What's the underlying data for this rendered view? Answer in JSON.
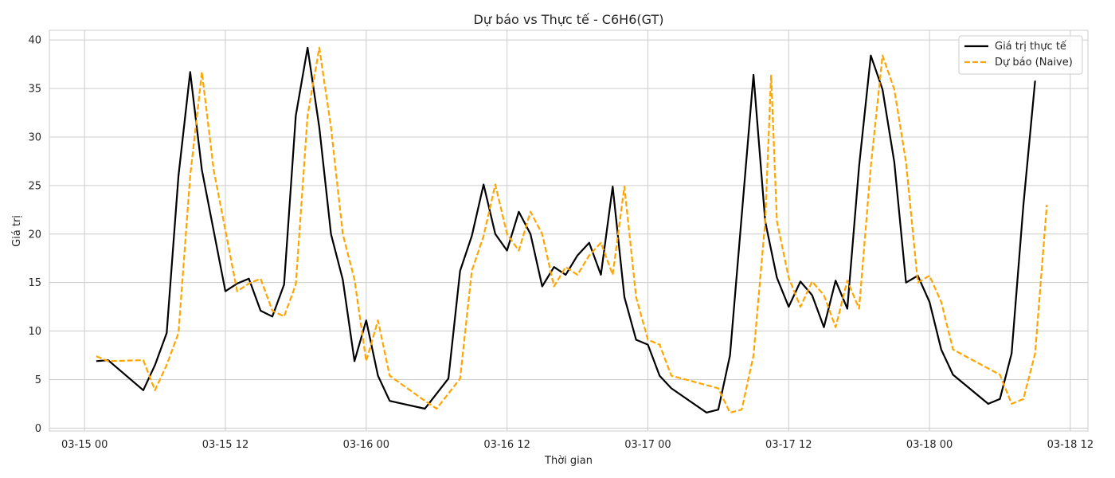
{
  "chart_data": {
    "type": "line",
    "title": "Dự báo vs Thực tế - C6H6(GT)",
    "xlabel": "Thời gian",
    "ylabel": "Giá trị",
    "x_ticks": [
      "03-15 00",
      "03-15 12",
      "03-16 00",
      "03-16 12",
      "03-17 00",
      "03-17 12",
      "03-18 00",
      "03-18 12"
    ],
    "x_tick_hours": [
      0,
      12,
      24,
      36,
      48,
      60,
      72,
      84
    ],
    "xlim_hours": [
      -3,
      85.5
    ],
    "y_ticks": [
      0,
      5,
      10,
      15,
      20,
      25,
      30,
      35,
      40
    ],
    "ylim": [
      -0.3,
      41
    ],
    "grid": true,
    "legend_position": "top-right",
    "series": [
      {
        "name": "Giá trị thực tế",
        "color": "#000000",
        "style": "solid",
        "points": [
          [
            1,
            6.9
          ],
          [
            2,
            7.0
          ],
          [
            5,
            3.9
          ],
          [
            6,
            6.5
          ],
          [
            7,
            9.8
          ],
          [
            8,
            26.0
          ],
          [
            9,
            36.7
          ],
          [
            10,
            26.6
          ],
          [
            12,
            14.1
          ],
          [
            13,
            14.9
          ],
          [
            14,
            15.4
          ],
          [
            15,
            12.1
          ],
          [
            16,
            11.5
          ],
          [
            17,
            14.8
          ],
          [
            18,
            32.2
          ],
          [
            19,
            39.2
          ],
          [
            20,
            31.0
          ],
          [
            21,
            20.0
          ],
          [
            22,
            15.3
          ],
          [
            23,
            6.9
          ],
          [
            24,
            11.1
          ],
          [
            25,
            5.4
          ],
          [
            26,
            2.8
          ],
          [
            29,
            2.0
          ],
          [
            31,
            5.1
          ],
          [
            32,
            16.2
          ],
          [
            33,
            19.8
          ],
          [
            34,
            25.1
          ],
          [
            35,
            20.0
          ],
          [
            36,
            18.3
          ],
          [
            37,
            22.3
          ],
          [
            38,
            20.0
          ],
          [
            39,
            14.6
          ],
          [
            40,
            16.6
          ],
          [
            41,
            15.8
          ],
          [
            42,
            17.8
          ],
          [
            43,
            19.1
          ],
          [
            44,
            15.8
          ],
          [
            45,
            24.9
          ],
          [
            46,
            13.5
          ],
          [
            47,
            9.1
          ],
          [
            48,
            8.6
          ],
          [
            49,
            5.4
          ],
          [
            50,
            4.1
          ],
          [
            53,
            1.6
          ],
          [
            54,
            1.9
          ],
          [
            55,
            7.5
          ],
          [
            57,
            36.4
          ],
          [
            58,
            21.3
          ],
          [
            59,
            15.5
          ],
          [
            60,
            12.5
          ],
          [
            61,
            15.1
          ],
          [
            62,
            13.7
          ],
          [
            63,
            10.4
          ],
          [
            64,
            15.2
          ],
          [
            65,
            12.3
          ],
          [
            66,
            27.0
          ],
          [
            67,
            38.4
          ],
          [
            68,
            34.9
          ],
          [
            69,
            27.4
          ],
          [
            70,
            15.0
          ],
          [
            71,
            15.7
          ],
          [
            72,
            13.0
          ],
          [
            73,
            8.1
          ],
          [
            74,
            5.5
          ],
          [
            77,
            2.5
          ],
          [
            78,
            3.0
          ],
          [
            79,
            7.7
          ],
          [
            80,
            23.0
          ],
          [
            81,
            35.8
          ]
        ]
      },
      {
        "name": "Dự báo (Naive)",
        "color": "#FFA500",
        "style": "dashed",
        "points": [
          [
            1,
            7.4
          ],
          [
            2,
            6.9
          ],
          [
            5,
            7.0
          ],
          [
            6,
            3.9
          ],
          [
            7,
            6.5
          ],
          [
            8,
            9.8
          ],
          [
            9,
            26.0
          ],
          [
            10,
            36.7
          ],
          [
            11,
            26.6
          ],
          [
            13,
            14.1
          ],
          [
            14,
            14.9
          ],
          [
            15,
            15.4
          ],
          [
            16,
            12.1
          ],
          [
            17,
            11.5
          ],
          [
            18,
            14.8
          ],
          [
            19,
            32.2
          ],
          [
            20,
            39.2
          ],
          [
            21,
            31.0
          ],
          [
            22,
            20.0
          ],
          [
            23,
            15.3
          ],
          [
            24,
            6.9
          ],
          [
            25,
            11.1
          ],
          [
            26,
            5.4
          ],
          [
            29,
            2.8
          ],
          [
            30,
            2.0
          ],
          [
            32,
            5.1
          ],
          [
            33,
            16.2
          ],
          [
            34,
            19.8
          ],
          [
            35,
            25.1
          ],
          [
            36,
            20.0
          ],
          [
            37,
            18.3
          ],
          [
            38,
            22.3
          ],
          [
            39,
            20.0
          ],
          [
            40,
            14.6
          ],
          [
            41,
            16.6
          ],
          [
            42,
            15.8
          ],
          [
            43,
            17.8
          ],
          [
            44,
            19.1
          ],
          [
            45,
            15.8
          ],
          [
            46,
            24.9
          ],
          [
            47,
            13.5
          ],
          [
            48,
            9.1
          ],
          [
            49,
            8.6
          ],
          [
            50,
            5.4
          ],
          [
            54,
            4.1
          ],
          [
            55,
            1.6
          ],
          [
            56,
            1.9
          ],
          [
            57,
            7.5
          ],
          [
            58,
            21.3
          ],
          [
            58.5,
            36.4
          ],
          [
            59,
            21.3
          ],
          [
            60,
            15.5
          ],
          [
            61,
            12.5
          ],
          [
            62,
            15.1
          ],
          [
            63,
            13.7
          ],
          [
            64,
            10.4
          ],
          [
            65,
            15.2
          ],
          [
            66,
            12.3
          ],
          [
            67,
            27.0
          ],
          [
            68,
            38.4
          ],
          [
            69,
            34.9
          ],
          [
            70,
            27.4
          ],
          [
            71,
            15.0
          ],
          [
            72,
            15.7
          ],
          [
            73,
            13.0
          ],
          [
            74,
            8.1
          ],
          [
            78,
            5.5
          ],
          [
            79,
            2.5
          ],
          [
            80,
            3.0
          ],
          [
            81,
            7.7
          ],
          [
            82,
            23.0
          ]
        ]
      }
    ]
  }
}
